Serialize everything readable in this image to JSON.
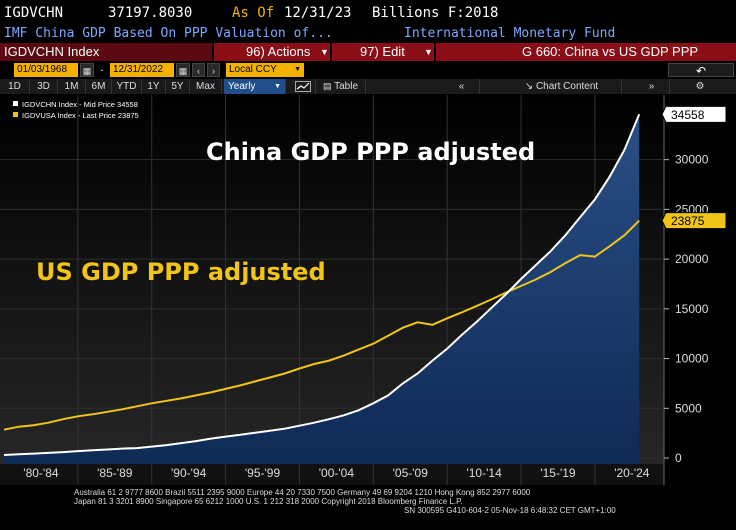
{
  "header": {
    "ticker": "IGDVCHN",
    "value": "37197.8030",
    "as_of_label": "As Of",
    "as_of_date": "12/31/23",
    "units": "Billions F:2018",
    "description": "IMF China GDP Based On PPP Valuation of...",
    "source": "International Monetary Fund"
  },
  "menubar": {
    "index_name": "IGDVCHN Index",
    "actions_label": "96) Actions",
    "edit_label": "97) Edit",
    "title_label": "G 660: China vs US GDP PPP"
  },
  "range": {
    "start_date": "01/03/1968",
    "end_date": "12/31/2022",
    "currency": "Local CCY"
  },
  "tabs": {
    "periods": [
      "1D",
      "3D",
      "1M",
      "6M",
      "YTD",
      "1Y",
      "5Y",
      "Max"
    ],
    "frequency": "Yearly",
    "table_label": "Table",
    "chart_content_label": "Chart Content"
  },
  "footer": {
    "line1": "Australia 61 2 9777 8600 Brazil 5511 2395 9000 Europe 44 20 7330 7500 Germany 49 69 9204 1210 Hong Kong 852 2977 6000",
    "line2": "Japan 81 3 3201 8900       Singapore 65 6212 1000       U.S. 1 212 318 2000         Copyright 2018 Bloomberg Finance L.P.",
    "line3": "SN 300595 G410-604-2 05-Nov-18  6:48:32 CET  GMT+1:00"
  },
  "colors": {
    "china": "#ffffff",
    "us": "#f0c419",
    "area_top": "#2a4f86",
    "area_bottom": "#0e2a55",
    "accent_red": "#8a0e16",
    "date_yellow": "#f5b100"
  },
  "chart_data": {
    "type": "line",
    "legend": [
      "IGDVCHN Index - Mid Price  34558",
      "IGDVUSA Index - Last Price 23875"
    ],
    "annotations": {
      "china": "China GDP PPP adjusted",
      "us": "US GDP PPP adjusted"
    },
    "last_values": {
      "china": "34558",
      "us": "23875"
    },
    "x_ticks": [
      "'80-'84",
      "'85-'89",
      "'90-'94",
      "'95-'99",
      "'00-'04",
      "'05-'09",
      "'10-'14",
      "'15-'19",
      "'20-'24"
    ],
    "y_ticks": [
      "0",
      "5000",
      "10000",
      "15000",
      "20000",
      "25000",
      "30000"
    ],
    "x_range": [
      1980,
      2024
    ],
    "y_range": [
      -600,
      36500
    ],
    "x": [
      1980,
      1981,
      1982,
      1983,
      1984,
      1985,
      1986,
      1987,
      1988,
      1989,
      1990,
      1991,
      1992,
      1993,
      1994,
      1995,
      1996,
      1997,
      1998,
      1999,
      2000,
      2001,
      2002,
      2003,
      2004,
      2005,
      2006,
      2007,
      2008,
      2009,
      2010,
      2011,
      2012,
      2013,
      2014,
      2015,
      2016,
      2017,
      2018,
      2019,
      2020,
      2021,
      2022,
      2023
    ],
    "series": [
      {
        "name": "IGDVCHN Index - Mid Price",
        "values": [
          300,
          380,
          450,
          520,
          600,
          700,
          780,
          860,
          950,
          1000,
          1150,
          1300,
          1500,
          1700,
          1950,
          2150,
          2350,
          2550,
          2750,
          2950,
          3250,
          3550,
          3900,
          4300,
          4800,
          5500,
          6300,
          7500,
          8500,
          9800,
          11000,
          12400,
          13700,
          15100,
          16500,
          18000,
          19400,
          20800,
          22400,
          24200,
          26000,
          28300,
          31000,
          34558
        ]
      },
      {
        "name": "IGDVUSA Index - Last Price",
        "values": [
          2850,
          3150,
          3300,
          3550,
          3900,
          4200,
          4400,
          4650,
          4900,
          5200,
          5500,
          5750,
          6000,
          6300,
          6600,
          6950,
          7300,
          7700,
          8100,
          8500,
          9000,
          9450,
          9800,
          10300,
          10900,
          11500,
          12300,
          13100,
          13650,
          13400,
          14050,
          14650,
          15300,
          15950,
          16650,
          17300,
          17950,
          18700,
          19600,
          20400,
          20250,
          21300,
          22400,
          23875
        ]
      }
    ]
  }
}
